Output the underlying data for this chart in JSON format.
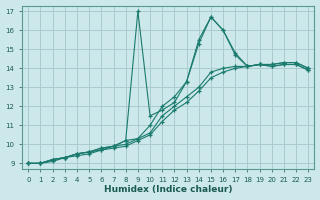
{
  "xlabel": "Humidex (Indice chaleur)",
  "bg_color": "#cce8ea",
  "grid_color": "#aaccce",
  "line_color": "#1a7a6e",
  "xlim": [
    -0.5,
    23.5
  ],
  "ylim": [
    8.7,
    17.3
  ],
  "yticks": [
    9,
    10,
    11,
    12,
    13,
    14,
    15,
    16,
    17
  ],
  "xticks": [
    0,
    1,
    2,
    3,
    4,
    5,
    6,
    7,
    8,
    9,
    10,
    11,
    12,
    13,
    14,
    15,
    16,
    17,
    18,
    19,
    20,
    21,
    22,
    23
  ],
  "series": [
    {
      "x": [
        0,
        1,
        2,
        3,
        4,
        5,
        6,
        7,
        8,
        9,
        10,
        11,
        12,
        13,
        14,
        15,
        16,
        17,
        18,
        19,
        20,
        21,
        22,
        23
      ],
      "y": [
        9,
        9,
        9.2,
        9.3,
        9.5,
        9.6,
        9.8,
        9.9,
        10.2,
        17.0,
        11.5,
        11.8,
        12.2,
        13.3,
        15.5,
        16.7,
        16.0,
        14.7,
        14.1,
        14.2,
        14.1,
        14.2,
        14.2,
        13.9
      ]
    },
    {
      "x": [
        0,
        1,
        2,
        3,
        4,
        5,
        6,
        7,
        8,
        9,
        10,
        11,
        12,
        13,
        14,
        15,
        16,
        17,
        18,
        19,
        20,
        21,
        22,
        23
      ],
      "y": [
        9,
        9,
        9.2,
        9.3,
        9.5,
        9.6,
        9.8,
        9.9,
        10.2,
        10.3,
        11.0,
        12.0,
        12.5,
        13.3,
        15.3,
        16.7,
        16.0,
        14.8,
        14.1,
        14.2,
        14.1,
        14.2,
        14.2,
        13.9
      ]
    },
    {
      "x": [
        0,
        1,
        2,
        3,
        4,
        5,
        6,
        7,
        8,
        9,
        10,
        11,
        12,
        13,
        14,
        15,
        16,
        17,
        18,
        19,
        20,
        21,
        22,
        23
      ],
      "y": [
        9,
        9,
        9.2,
        9.3,
        9.5,
        9.6,
        9.7,
        9.9,
        10.0,
        10.3,
        10.6,
        11.5,
        12.0,
        12.5,
        13.0,
        13.8,
        14.0,
        14.1,
        14.1,
        14.2,
        14.2,
        14.3,
        14.3,
        14.0
      ]
    },
    {
      "x": [
        0,
        1,
        2,
        3,
        4,
        5,
        6,
        7,
        8,
        9,
        10,
        11,
        12,
        13,
        14,
        15,
        16,
        17,
        18,
        19,
        20,
        21,
        22,
        23
      ],
      "y": [
        9,
        9,
        9.1,
        9.3,
        9.4,
        9.5,
        9.7,
        9.8,
        9.9,
        10.2,
        10.5,
        11.2,
        11.8,
        12.2,
        12.8,
        13.5,
        13.8,
        14.0,
        14.1,
        14.2,
        14.2,
        14.3,
        14.3,
        14.0
      ]
    }
  ]
}
